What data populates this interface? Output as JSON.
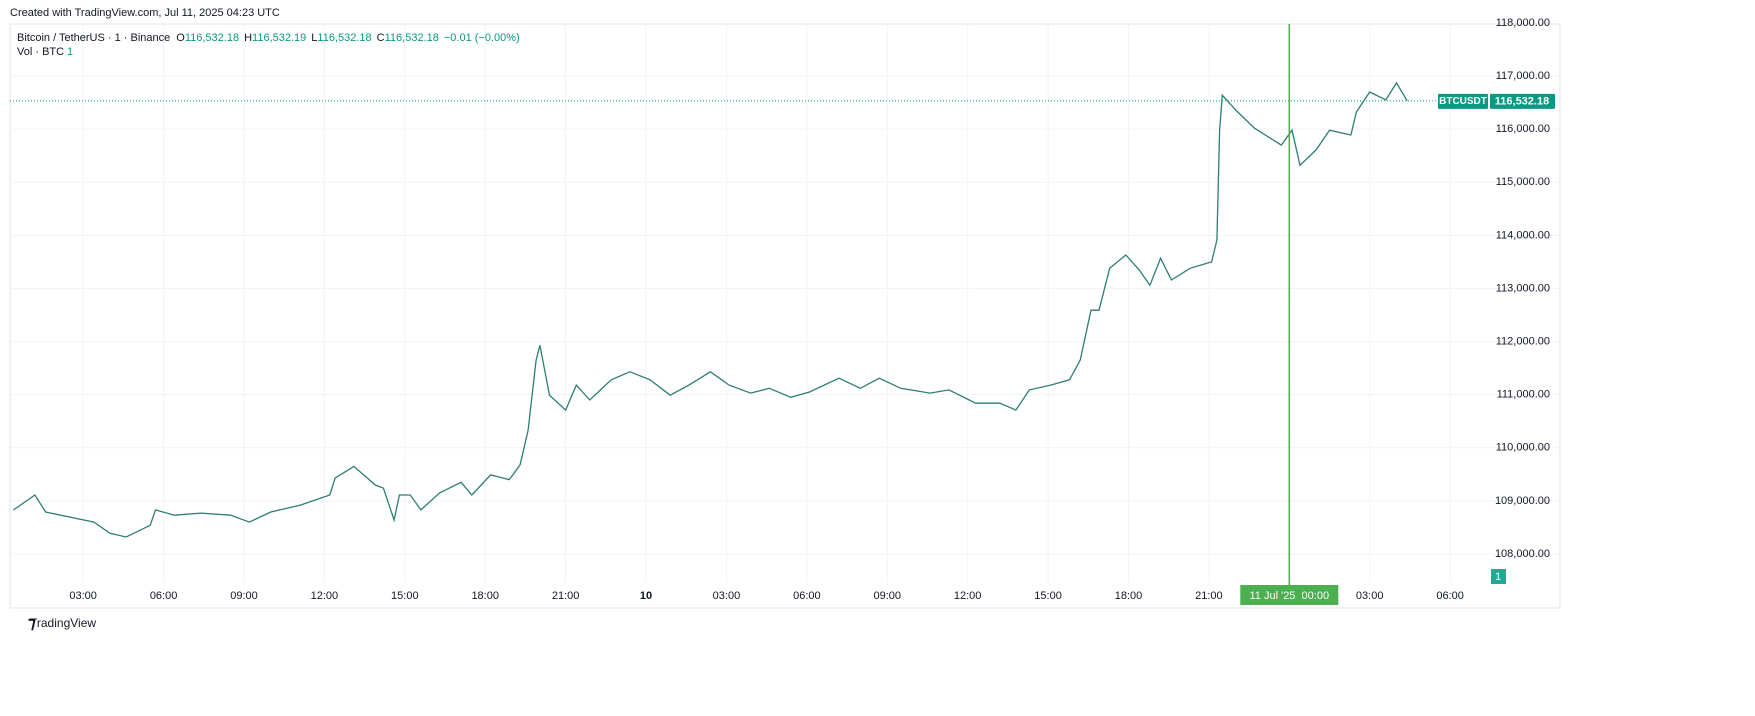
{
  "header": "Created with TradingView.com, Jul 11, 2025 04:23 UTC",
  "legend": {
    "symbol": "Bitcoin / TetherUS · 1 · Binance",
    "o_label": "O",
    "o": "116,532.18",
    "h_label": "H",
    "h": "116,532.19",
    "l_label": "L",
    "l": "116,532.18",
    "c_label": "C",
    "c": "116,532.18",
    "change": "−0.01 (−0.00%)",
    "volume_name": "Vol · BTC",
    "volume": "1"
  },
  "footer": "TradingView",
  "chart_data": {
    "type": "line",
    "color": "#2e7d73",
    "x": [
      -23.6,
      -22.8,
      -22.4,
      -20.6,
      -20,
      -19.4,
      -18.5,
      -18.3,
      -17.6,
      -16.6,
      -15.5,
      -14.8,
      -14,
      -12.9,
      -11.8,
      -11.6,
      -10.9,
      -10.1,
      -9.8,
      -9.4,
      -9.2,
      -8.8,
      -8.4,
      -7.7,
      -6.9,
      -6.5,
      -5.8,
      -5.1,
      -4.7,
      -4.4,
      -4.1,
      -3.96,
      -3.6,
      -3.0,
      -2.6,
      -2.1,
      -1.3,
      -0.6,
      0.15,
      0.9,
      1.6,
      2.4,
      3.1,
      3.9,
      4.6,
      5.4,
      6.1,
      7.2,
      8.0,
      8.7,
      9.5,
      10.6,
      11.3,
      12.3,
      13.2,
      13.8,
      14.3,
      15.1,
      15.8,
      16.2,
      16.6,
      16.9,
      17.3,
      17.9,
      18.4,
      18.8,
      19.2,
      19.6,
      20.3,
      21.1,
      21.3,
      21.4,
      21.5,
      22.0,
      22.7,
      23.7,
      24.1,
      24.4,
      25.0,
      25.5,
      26.3,
      26.5,
      27.0,
      27.6,
      28.0,
      28.4
    ],
    "series": [
      {
        "name": "BTCUSDT",
        "values": [
          108830,
          109110,
          108790,
          108600,
          108390,
          108320,
          108540,
          108830,
          108730,
          108770,
          108730,
          108600,
          108790,
          108920,
          109110,
          109430,
          109650,
          109300,
          109240,
          108640,
          109110,
          109110,
          108830,
          109150,
          109350,
          109110,
          109490,
          109400,
          109680,
          110330,
          111650,
          111930,
          110990,
          110710,
          111180,
          110900,
          111280,
          111430,
          111280,
          110990,
          111180,
          111430,
          111180,
          111030,
          111120,
          110950,
          111050,
          111310,
          111120,
          111310,
          111120,
          111030,
          111090,
          110840,
          110840,
          110710,
          111090,
          111180,
          111280,
          111650,
          112590,
          112590,
          113380,
          113630,
          113350,
          113060,
          113570,
          113160,
          113380,
          113500,
          113910,
          115980,
          116640,
          116360,
          116020,
          115700,
          115980,
          115320,
          115610,
          115980,
          115890,
          116320,
          116700,
          116550,
          116870,
          116532.18
        ]
      }
    ],
    "last_price": {
      "value": 116532.18,
      "label": "116,532.18"
    },
    "crosshair": {
      "value": 24,
      "label": "11 Jul '25  00:00"
    },
    "xlim": [
      -23.73,
      34.1
    ],
    "xticks": [
      {
        "value": -21,
        "label": "03:00"
      },
      {
        "value": -18,
        "label": "06:00"
      },
      {
        "value": -15,
        "label": "09:00"
      },
      {
        "value": -12,
        "label": "12:00"
      },
      {
        "value": -9,
        "label": "15:00"
      },
      {
        "value": -6,
        "label": "18:00"
      },
      {
        "value": -3,
        "label": "21:00"
      },
      {
        "value": 0,
        "label": "10"
      },
      {
        "value": 3,
        "label": "03:00"
      },
      {
        "value": 6,
        "label": "06:00"
      },
      {
        "value": 9,
        "label": "09:00"
      },
      {
        "value": 12,
        "label": "12:00"
      },
      {
        "value": 15,
        "label": "15:00"
      },
      {
        "value": 18,
        "label": "18:00"
      },
      {
        "value": 21,
        "label": "21:00"
      },
      {
        "value": 27,
        "label": "03:00"
      },
      {
        "value": 30,
        "label": "06:00"
      }
    ],
    "ylim": [
      106983,
      117980
    ],
    "yticks": [
      {
        "value": 108000,
        "label": "108,000.00"
      },
      {
        "value": 109000,
        "label": "109,000.00"
      },
      {
        "value": 110000,
        "label": "110,000.00"
      },
      {
        "value": 111000,
        "label": "111,000.00"
      },
      {
        "value": 112000,
        "label": "112,000.00"
      },
      {
        "value": 113000,
        "label": "113,000.00"
      },
      {
        "value": 114000,
        "label": "114,000.00"
      },
      {
        "value": 115000,
        "label": "115,000.00"
      },
      {
        "value": 116000,
        "label": "116,000.00"
      },
      {
        "value": 117000,
        "label": "117,000.00"
      },
      {
        "value": 118000,
        "label": "118,000.00"
      }
    ],
    "grid": true
  }
}
